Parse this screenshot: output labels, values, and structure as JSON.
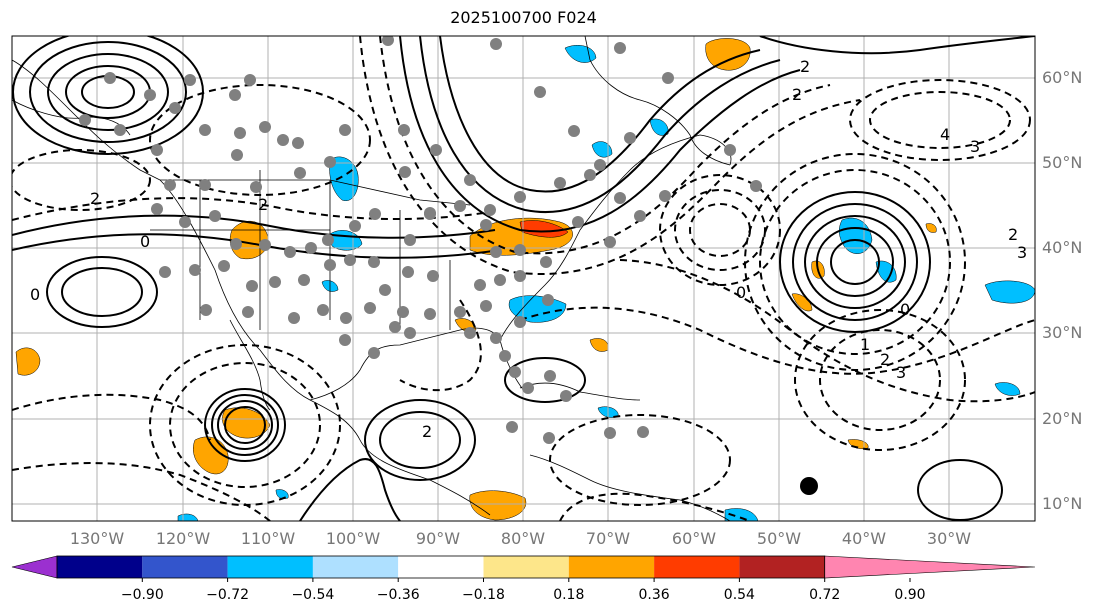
{
  "title": "2025100700 F024",
  "lon_labels": [
    "130°W",
    "120°W",
    "110°W",
    "100°W",
    "90°W",
    "80°W",
    "70°W",
    "60°W",
    "50°W",
    "40°W",
    "30°W"
  ],
  "lat_labels": [
    "60°N",
    "50°N",
    "40°N",
    "30°N",
    "20°N",
    "10°N"
  ],
  "colorbar": {
    "ticks": [
      "−0.90",
      "−0.72",
      "−0.54",
      "−0.36",
      "−0.18",
      "0.18",
      "0.36",
      "0.54",
      "0.72",
      "0.90"
    ],
    "colors": [
      "#9b30d0",
      "#00008b",
      "#3355cc",
      "#00bfff",
      "#aee0ff",
      "#ffffff",
      "#fde68a",
      "#ffa500",
      "#ff3c00",
      "#b22222",
      "#ff85b0"
    ]
  },
  "contour_labels": [
    "2",
    "2",
    "2",
    "2",
    "4",
    "3",
    "0",
    "0",
    "0",
    "2",
    "3",
    "1",
    "2",
    "3",
    "0",
    "2"
  ],
  "colors": {
    "positive_fill": "#ffa500",
    "negative_fill": "#00bfff",
    "station": "#808080"
  },
  "icons": [
    "station-marker-icon",
    "black-dot-icon"
  ]
}
